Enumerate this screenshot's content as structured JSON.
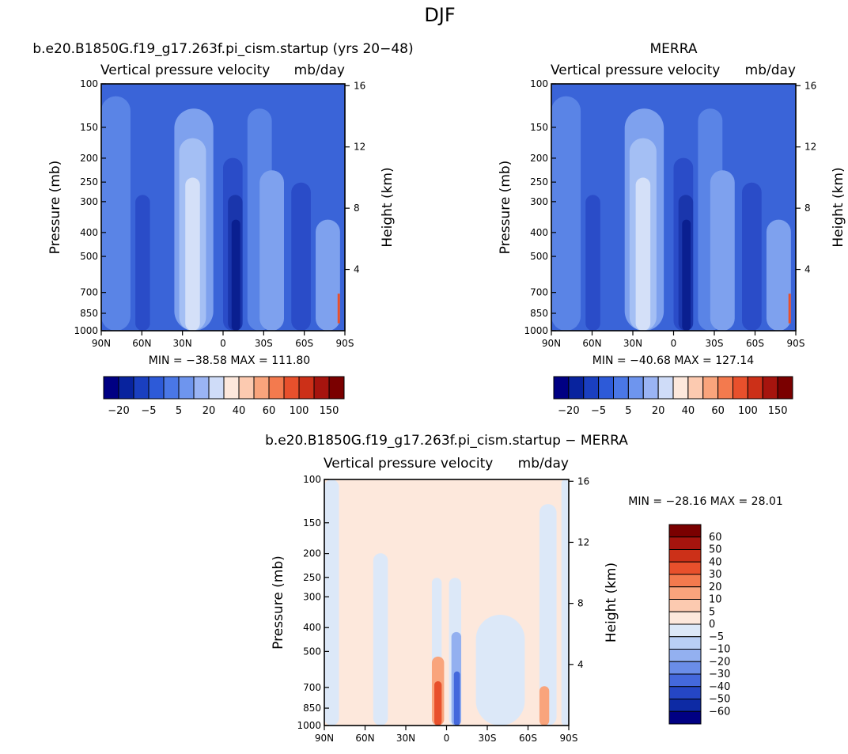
{
  "title": "DJF",
  "chart_data": [
    {
      "type": "heatmap",
      "title": "b.e20.B1850G.f19_g17.263f.pi_cism.startup (yrs 20−48)",
      "variable": "Vertical pressure velocity",
      "units": "mb/day",
      "xlabel": "",
      "ylabel": "Pressure (mb)",
      "ylabel_right": "Height (km)",
      "x_ticks": [
        "90N",
        "60N",
        "30N",
        "0",
        "30S",
        "60S",
        "90S"
      ],
      "y_ticks": [
        100,
        150,
        200,
        250,
        300,
        400,
        500,
        700,
        850,
        1000
      ],
      "y_ticks_right": [
        16,
        12,
        8,
        4
      ],
      "ylim": [
        1000,
        100
      ],
      "min_label": "MIN = −38.58",
      "max_label": "MAX = 111.80",
      "colorbar_levels": [
        "−20",
        "−5",
        "5",
        "20",
        "40",
        "60",
        "100",
        "150"
      ],
      "colorbar_colors": [
        "#000083",
        "#08239e",
        "#1a3fc0",
        "#2d5ad8",
        "#4a77e6",
        "#6e95ee",
        "#9ab4f4",
        "#cfdcf8",
        "#fde8dc",
        "#fccab0",
        "#f9a47c",
        "#f37a4e",
        "#e8502c",
        "#cc3018",
        "#a6140e",
        "#7a0000"
      ]
    },
    {
      "type": "heatmap",
      "title": "MERRA",
      "variable": "Vertical pressure velocity",
      "units": "mb/day",
      "xlabel": "",
      "ylabel": "Pressure (mb)",
      "ylabel_right": "Height (km)",
      "x_ticks": [
        "90N",
        "60N",
        "30N",
        "0",
        "30S",
        "60S",
        "90S"
      ],
      "y_ticks": [
        100,
        150,
        200,
        250,
        300,
        400,
        500,
        700,
        850,
        1000
      ],
      "y_ticks_right": [
        16,
        12,
        8,
        4
      ],
      "ylim": [
        1000,
        100
      ],
      "min_label": "MIN = −40.68",
      "max_label": "MAX = 127.14",
      "colorbar_levels": [
        "−20",
        "−5",
        "5",
        "20",
        "40",
        "60",
        "100",
        "150"
      ],
      "colorbar_colors": [
        "#000083",
        "#08239e",
        "#1a3fc0",
        "#2d5ad8",
        "#4a77e6",
        "#6e95ee",
        "#9ab4f4",
        "#cfdcf8",
        "#fde8dc",
        "#fccab0",
        "#f9a47c",
        "#f37a4e",
        "#e8502c",
        "#cc3018",
        "#a6140e",
        "#7a0000"
      ]
    },
    {
      "type": "heatmap",
      "title": "b.e20.B1850G.f19_g17.263f.pi_cism.startup − MERRA",
      "variable": "Vertical pressure velocity",
      "units": "mb/day",
      "xlabel": "",
      "ylabel": "Pressure (mb)",
      "ylabel_right": "Height (km)",
      "x_ticks": [
        "90N",
        "60N",
        "30N",
        "0",
        "30S",
        "60S",
        "90S"
      ],
      "y_ticks": [
        100,
        150,
        200,
        250,
        300,
        400,
        500,
        700,
        850,
        1000
      ],
      "y_ticks_right": [
        16,
        12,
        8,
        4
      ],
      "ylim": [
        1000,
        100
      ],
      "min_label": "MIN = −28.16",
      "max_label": "MAX =  28.01",
      "colorbar_levels": [
        "60",
        "50",
        "40",
        "30",
        "20",
        "10",
        "5",
        "0",
        "−5",
        "−10",
        "−20",
        "−30",
        "−40",
        "−50",
        "−60"
      ],
      "colorbar_colors": [
        "#7a0000",
        "#a6140e",
        "#cc3018",
        "#e8502c",
        "#f37a4e",
        "#f9a47c",
        "#fccab0",
        "#fde8dc",
        "#dce8f8",
        "#b9cff5",
        "#93b0f0",
        "#6a8de8",
        "#4468dc",
        "#2546c4",
        "#0d2aa4",
        "#000083"
      ]
    }
  ]
}
